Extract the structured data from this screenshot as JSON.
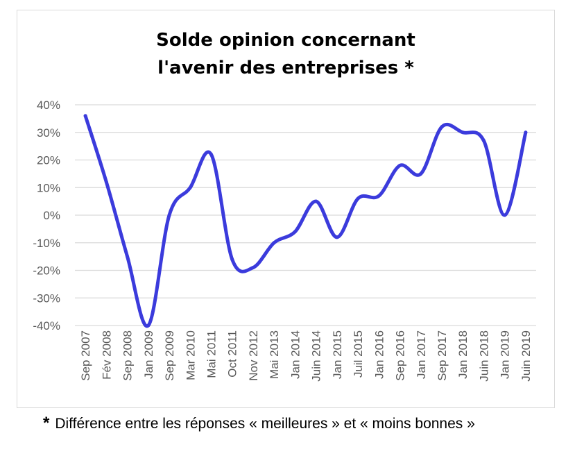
{
  "title_line1": "Solde opinion concernant",
  "title_line2": "l'avenir des entreprises *",
  "footnote_marker": "*",
  "footnote_text": "Différence entre les réponses « meilleures » et « moins bonnes »",
  "colors": {
    "line": "#3b3bdc",
    "grid": "#d9d9d9",
    "text": "#595959"
  },
  "chart_data": {
    "type": "line",
    "title": "Solde opinion concernant l'avenir des entreprises *",
    "xlabel": "",
    "ylabel": "",
    "ylim": [
      -40,
      40
    ],
    "y_ticks": [
      40,
      30,
      20,
      10,
      0,
      -10,
      -20,
      -30,
      -40
    ],
    "y_tick_labels": [
      "40%",
      "30%",
      "20%",
      "10%",
      "0%",
      "-10%",
      "-20%",
      "-30%",
      "-40%"
    ],
    "grid": true,
    "legend": "none",
    "smooth": true,
    "categories": [
      "Sep 2007",
      "Fév 2008",
      "Sep 2008",
      "Jan 2009",
      "Sep 2009",
      "Mar 2010",
      "Mai 2011",
      "Oct 2011",
      "Nov 2012",
      "Mai 2013",
      "Jan 2014",
      "Juin 2014",
      "Jan 2015",
      "Juil 2015",
      "Jan 2016",
      "Sep 2016",
      "Jan 2017",
      "Sep 2017",
      "Jan 2018",
      "Juin 2018",
      "Jan 2019",
      "Juin 2019"
    ],
    "series": [
      {
        "values": [
          36,
          12,
          -15,
          -40,
          0,
          10,
          22,
          -16,
          -19,
          -10,
          -6,
          5,
          -8,
          6,
          7,
          18,
          15,
          32,
          30,
          27,
          0,
          30
        ]
      }
    ]
  }
}
